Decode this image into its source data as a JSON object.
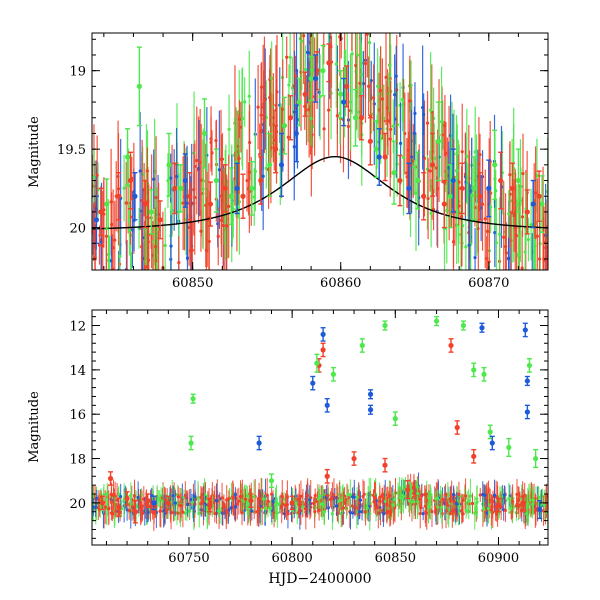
{
  "colors": {
    "green": "#4ce84c",
    "red": "#f2412a",
    "blue": "#1f5bd8",
    "model": "#000000"
  },
  "chart_data": [
    {
      "type": "scatter",
      "title": "",
      "xlabel": "",
      "ylabel": "Magnitude",
      "xlim": [
        60843.2,
        60874.0
      ],
      "ylim": [
        20.27,
        18.76
      ],
      "y_inverted": true,
      "xticks": [
        60850,
        60860,
        60870
      ],
      "yticks": [
        19,
        19.5,
        20
      ],
      "ytick_labels": [
        "19",
        "19.5",
        "20"
      ],
      "grid": false,
      "legend": "none",
      "model_curve": {
        "type": "microlensing",
        "t0": 60859.6,
        "tE": 5.0,
        "u0": 0.79,
        "baseline": 20.02,
        "x_range": [
          60843.2,
          60874.0
        ]
      },
      "series": [
        {
          "color_key": "green",
          "points": [
            [
              60844.2,
              19.85,
              0.16
            ],
            [
              60845.6,
              19.55,
              0.18
            ],
            [
              60846.4,
              19.1,
              0.25
            ],
            [
              60847.2,
              19.9,
              0.14
            ],
            [
              60848.4,
              19.6,
              0.2
            ],
            [
              60849.2,
              19.75,
              0.15
            ],
            [
              60850.8,
              19.4,
              0.22
            ],
            [
              60851.6,
              19.7,
              0.2
            ],
            [
              60852.6,
              19.8,
              0.18
            ],
            [
              60854.0,
              19.75,
              0.17
            ],
            [
              60855.2,
              19.6,
              0.2
            ],
            [
              60856.2,
              19.35,
              0.18
            ],
            [
              60857.2,
              19.2,
              0.15
            ],
            [
              60858.0,
              19.05,
              0.14
            ],
            [
              60858.8,
              19.0,
              0.16
            ],
            [
              60860.0,
              19.15,
              0.15
            ],
            [
              60861.0,
              19.3,
              0.18
            ],
            [
              60862.4,
              19.5,
              0.18
            ],
            [
              60863.6,
              19.65,
              0.2
            ],
            [
              60865.2,
              19.7,
              0.18
            ],
            [
              60866.6,
              19.45,
              0.25
            ],
            [
              60867.4,
              19.8,
              0.2
            ],
            [
              60869.0,
              19.75,
              0.2
            ],
            [
              60870.4,
              19.6,
              0.22
            ],
            [
              60872.0,
              19.7,
              0.2
            ],
            [
              60873.6,
              19.85,
              0.18
            ]
          ]
        },
        {
          "color_key": "red",
          "points": [
            [
              60843.8,
              19.9,
              0.15
            ],
            [
              60845.0,
              19.8,
              0.15
            ],
            [
              60845.8,
              19.7,
              0.18
            ],
            [
              60846.8,
              19.85,
              0.15
            ],
            [
              60847.8,
              19.95,
              0.12
            ],
            [
              60848.8,
              19.75,
              0.16
            ],
            [
              60849.8,
              19.8,
              0.15
            ],
            [
              60851.2,
              19.85,
              0.14
            ],
            [
              60852.2,
              19.75,
              0.15
            ],
            [
              60853.4,
              19.8,
              0.14
            ],
            [
              60854.6,
              19.7,
              0.15
            ],
            [
              60855.6,
              19.5,
              0.15
            ],
            [
              60856.6,
              19.3,
              0.14
            ],
            [
              60857.6,
              19.15,
              0.14
            ],
            [
              60858.4,
              19.0,
              0.12
            ],
            [
              60859.2,
              18.95,
              0.12
            ],
            [
              60860.4,
              19.1,
              0.13
            ],
            [
              60861.4,
              19.3,
              0.14
            ],
            [
              60862.0,
              19.45,
              0.15
            ],
            [
              60863.0,
              19.55,
              0.15
            ],
            [
              60864.0,
              19.7,
              0.16
            ],
            [
              60865.6,
              19.8,
              0.15
            ],
            [
              60866.2,
              19.6,
              0.2
            ],
            [
              60867.0,
              19.85,
              0.15
            ],
            [
              60868.2,
              19.75,
              0.16
            ],
            [
              60869.4,
              19.8,
              0.15
            ],
            [
              60870.8,
              19.7,
              0.18
            ],
            [
              60871.6,
              19.75,
              0.16
            ],
            [
              60872.6,
              19.9,
              0.14
            ],
            [
              60873.4,
              19.8,
              0.16
            ]
          ]
        },
        {
          "color_key": "blue",
          "points": [
            [
              60843.5,
              19.95,
              0.15
            ],
            [
              60846.1,
              19.8,
              0.15
            ],
            [
              60849.5,
              19.7,
              0.17
            ],
            [
              60853.0,
              19.75,
              0.16
            ],
            [
              60856.0,
              19.6,
              0.2
            ],
            [
              60857.0,
              19.4,
              0.18
            ],
            [
              60858.3,
              19.05,
              0.15
            ],
            [
              60860.2,
              19.2,
              0.15
            ],
            [
              60862.6,
              19.55,
              0.18
            ],
            [
              60864.6,
              19.75,
              0.16
            ],
            [
              60867.6,
              19.7,
              0.2
            ],
            [
              60870.0,
              19.75,
              0.18
            ],
            [
              60873.0,
              19.85,
              0.15
            ]
          ]
        }
      ]
    },
    {
      "type": "scatter",
      "title": "",
      "xlabel": "HJD−2400000",
      "ylabel": "Magnitude",
      "xlim": [
        60703,
        60924
      ],
      "ylim": [
        21.9,
        11.3
      ],
      "y_inverted": true,
      "xticks": [
        60750,
        60800,
        60850,
        60900
      ],
      "yticks": [
        12,
        14,
        16,
        18,
        20
      ],
      "ytick_labels": [
        "12",
        "14",
        "16",
        "18",
        "20"
      ],
      "grid": false,
      "legend": "none",
      "series": [
        {
          "color_key": "red",
          "points": [
            [
              60708,
              20.0,
              0.3
            ],
            [
              60712,
              18.9,
              0.3
            ],
            [
              60716,
              20.2,
              0.4
            ],
            [
              60720,
              19.8,
              0.3
            ],
            [
              60724,
              20.4,
              0.5
            ],
            [
              60730,
              19.9,
              0.3
            ],
            [
              60740,
              20.0,
              0.3
            ],
            [
              60760,
              20.1,
              0.3
            ],
            [
              60780,
              19.9,
              0.3
            ],
            [
              60800,
              20.0,
              0.3
            ],
            [
              60813,
              13.8,
              0.3
            ],
            [
              60815,
              13.1,
              0.3
            ],
            [
              60817,
              18.8,
              0.3
            ],
            [
              60830,
              18.0,
              0.3
            ],
            [
              60845,
              18.3,
              0.3
            ],
            [
              60856,
              19.4,
              0.4
            ],
            [
              60877,
              12.9,
              0.3
            ],
            [
              60880,
              16.6,
              0.3
            ],
            [
              60888,
              17.9,
              0.3
            ],
            [
              60900,
              20.1,
              0.3
            ],
            [
              60912,
              20.0,
              0.3
            ]
          ]
        },
        {
          "color_key": "green",
          "points": [
            [
              60751,
              17.3,
              0.3
            ],
            [
              60752,
              15.3,
              0.2
            ],
            [
              60790,
              19.0,
              0.3
            ],
            [
              60812,
              13.7,
              0.4
            ],
            [
              60820,
              14.2,
              0.3
            ],
            [
              60834,
              12.9,
              0.3
            ],
            [
              60845,
              12.0,
              0.2
            ],
            [
              60850,
              16.2,
              0.3
            ],
            [
              60870,
              11.8,
              0.2
            ],
            [
              60883,
              12.0,
              0.2
            ],
            [
              60888,
              14.0,
              0.3
            ],
            [
              60893,
              14.2,
              0.3
            ],
            [
              60896,
              16.8,
              0.3
            ],
            [
              60905,
              17.5,
              0.4
            ],
            [
              60915,
              13.8,
              0.3
            ],
            [
              60918,
              18.0,
              0.4
            ]
          ]
        },
        {
          "color_key": "blue",
          "points": [
            [
              60733,
              20.0,
              0.3
            ],
            [
              60784,
              17.3,
              0.3
            ],
            [
              60810,
              14.6,
              0.3
            ],
            [
              60815,
              12.4,
              0.3
            ],
            [
              60817,
              15.6,
              0.3
            ],
            [
              60838,
              15.1,
              0.2
            ],
            [
              60838,
              15.8,
              0.2
            ],
            [
              60892,
              12.1,
              0.2
            ],
            [
              60897,
              17.3,
              0.3
            ],
            [
              60913,
              12.2,
              0.3
            ],
            [
              60914,
              14.5,
              0.2
            ],
            [
              60914,
              15.9,
              0.3
            ],
            [
              60920,
              20.3,
              0.4
            ]
          ]
        }
      ]
    }
  ]
}
